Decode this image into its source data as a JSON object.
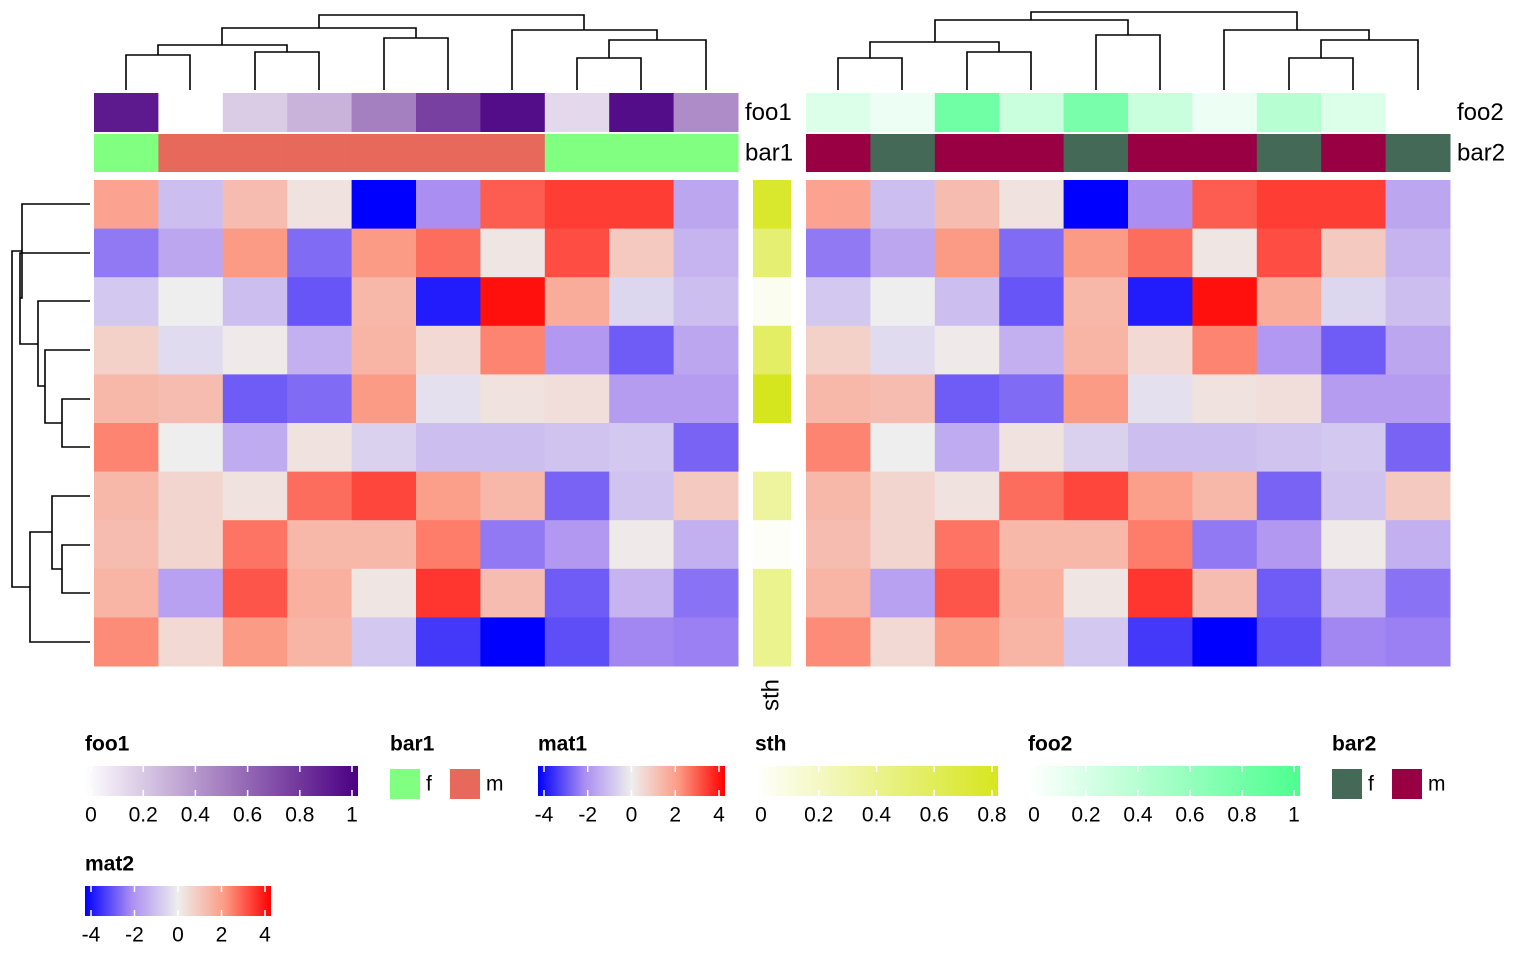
{
  "chart_data": [
    {
      "type": "heatmap",
      "name": "mat1",
      "values": [
        [
          1.8,
          -1,
          1.2,
          0.3,
          -4,
          -2,
          2.8,
          3.2,
          3.2,
          -1.5
        ],
        [
          -2.3,
          -1.5,
          2,
          -2.5,
          2,
          2.6,
          0.2,
          3,
          0.9,
          -1.2
        ],
        [
          -0.8,
          0,
          -1,
          -2.8,
          1.3,
          -3.6,
          3.8,
          1.6,
          -0.5,
          -1
        ],
        [
          0.7,
          -0.4,
          0.1,
          -1.3,
          1.4,
          0.5,
          2.3,
          -1.8,
          -2.7,
          -1.5
        ],
        [
          1.3,
          1.2,
          -2.7,
          -2.5,
          2,
          -0.3,
          0.3,
          0.4,
          -1.7,
          -1.7
        ],
        [
          2.3,
          0,
          -1.4,
          0.3,
          -0.6,
          -1,
          -1,
          -0.9,
          -0.8,
          -2.6
        ],
        [
          1.3,
          0.6,
          0.3,
          2.6,
          3.1,
          1.9,
          1.3,
          -2.6,
          -0.9,
          0.9
        ],
        [
          1.2,
          0.6,
          2.5,
          1.3,
          1.3,
          2.4,
          -2.3,
          -1.8,
          0.1,
          -1.3
        ],
        [
          1.4,
          -1.6,
          2.9,
          1.5,
          0.2,
          3.3,
          1.2,
          -2.7,
          -1.2,
          -2.4
        ],
        [
          2.2,
          0.5,
          2,
          1.4,
          -0.8,
          -3.2,
          -4,
          -2.9,
          -2.1,
          -2.2
        ]
      ],
      "ticks": [
        -4,
        -2,
        0,
        2,
        4
      ],
      "colors": [
        "#0000ff",
        "#ab8ef1",
        "#eeeeee",
        "#fc9b85",
        "#ff0000"
      ],
      "annotations": [
        {
          "name": "foo1",
          "kind": "continuous",
          "values": [
            0.9,
            0,
            0.2,
            0.3,
            0.5,
            0.75,
            0.95,
            0.15,
            0.95,
            0.45
          ],
          "ticks": [
            0,
            0.2,
            0.4,
            0.6,
            0.8,
            1
          ],
          "colors": [
            "#ffffff",
            "#4b0082"
          ]
        },
        {
          "name": "bar1",
          "kind": "discrete",
          "values": [
            "f",
            "m",
            "m",
            "m",
            "m",
            "m",
            "m",
            "f",
            "f",
            "f"
          ],
          "levels": [
            "f",
            "m"
          ],
          "colors": [
            "#80ff80",
            "#e6695c"
          ]
        }
      ]
    },
    {
      "type": "row-annotation",
      "name": "sth",
      "values": [
        0.75,
        0.5,
        0.05,
        0.55,
        0.8,
        0,
        0.35,
        0.02,
        0.4,
        0.4
      ],
      "ticks": [
        0,
        0.2,
        0.4,
        0.6,
        0.8
      ],
      "colors": [
        "#ffffff",
        "#d6e61e"
      ]
    },
    {
      "type": "heatmap",
      "name": "mat2",
      "values": [
        [
          1.8,
          -1,
          1.2,
          0.3,
          -4,
          -2,
          2.8,
          3.2,
          3.2,
          -1.5
        ],
        [
          -2.3,
          -1.5,
          2,
          -2.5,
          2,
          2.6,
          0.2,
          3,
          0.9,
          -1.2
        ],
        [
          -0.8,
          0,
          -1,
          -2.8,
          1.3,
          -3.6,
          3.8,
          1.6,
          -0.5,
          -1
        ],
        [
          0.7,
          -0.4,
          0.1,
          -1.3,
          1.4,
          0.5,
          2.3,
          -1.8,
          -2.7,
          -1.5
        ],
        [
          1.3,
          1.2,
          -2.7,
          -2.5,
          2,
          -0.3,
          0.3,
          0.4,
          -1.7,
          -1.7
        ],
        [
          2.3,
          0,
          -1.4,
          0.3,
          -0.6,
          -1,
          -1,
          -0.9,
          -0.8,
          -2.6
        ],
        [
          1.3,
          0.6,
          0.3,
          2.6,
          3.1,
          1.9,
          1.3,
          -2.6,
          -0.9,
          0.9
        ],
        [
          1.2,
          0.6,
          2.5,
          1.3,
          1.3,
          2.4,
          -2.3,
          -1.8,
          0.1,
          -1.3
        ],
        [
          1.4,
          -1.6,
          2.9,
          1.5,
          0.2,
          3.3,
          1.2,
          -2.7,
          -1.2,
          -2.4
        ],
        [
          2.2,
          0.5,
          2,
          1.4,
          -0.8,
          -3.2,
          -4,
          -2.9,
          -2.1,
          -2.2
        ]
      ],
      "ticks": [
        -4,
        -2,
        0,
        2,
        4
      ],
      "colors": [
        "#0000ff",
        "#ab8ef1",
        "#eeeeee",
        "#fc9b85",
        "#ff0000"
      ],
      "annotations": [
        {
          "name": "foo2",
          "kind": "continuous",
          "values": [
            0.2,
            0.1,
            0.8,
            0.3,
            0.75,
            0.3,
            0.1,
            0.4,
            0.2,
            0
          ],
          "ticks": [
            0,
            0.2,
            0.4,
            0.6,
            0.8,
            1
          ],
          "colors": [
            "#ffffff",
            "#4cff8f"
          ]
        },
        {
          "name": "bar2",
          "kind": "discrete",
          "values": [
            "m",
            "f",
            "m",
            "m",
            "f",
            "m",
            "m",
            "f",
            "m",
            "f"
          ],
          "levels": [
            "f",
            "m"
          ],
          "colors": [
            "#446957",
            "#990044"
          ]
        }
      ]
    }
  ]
}
